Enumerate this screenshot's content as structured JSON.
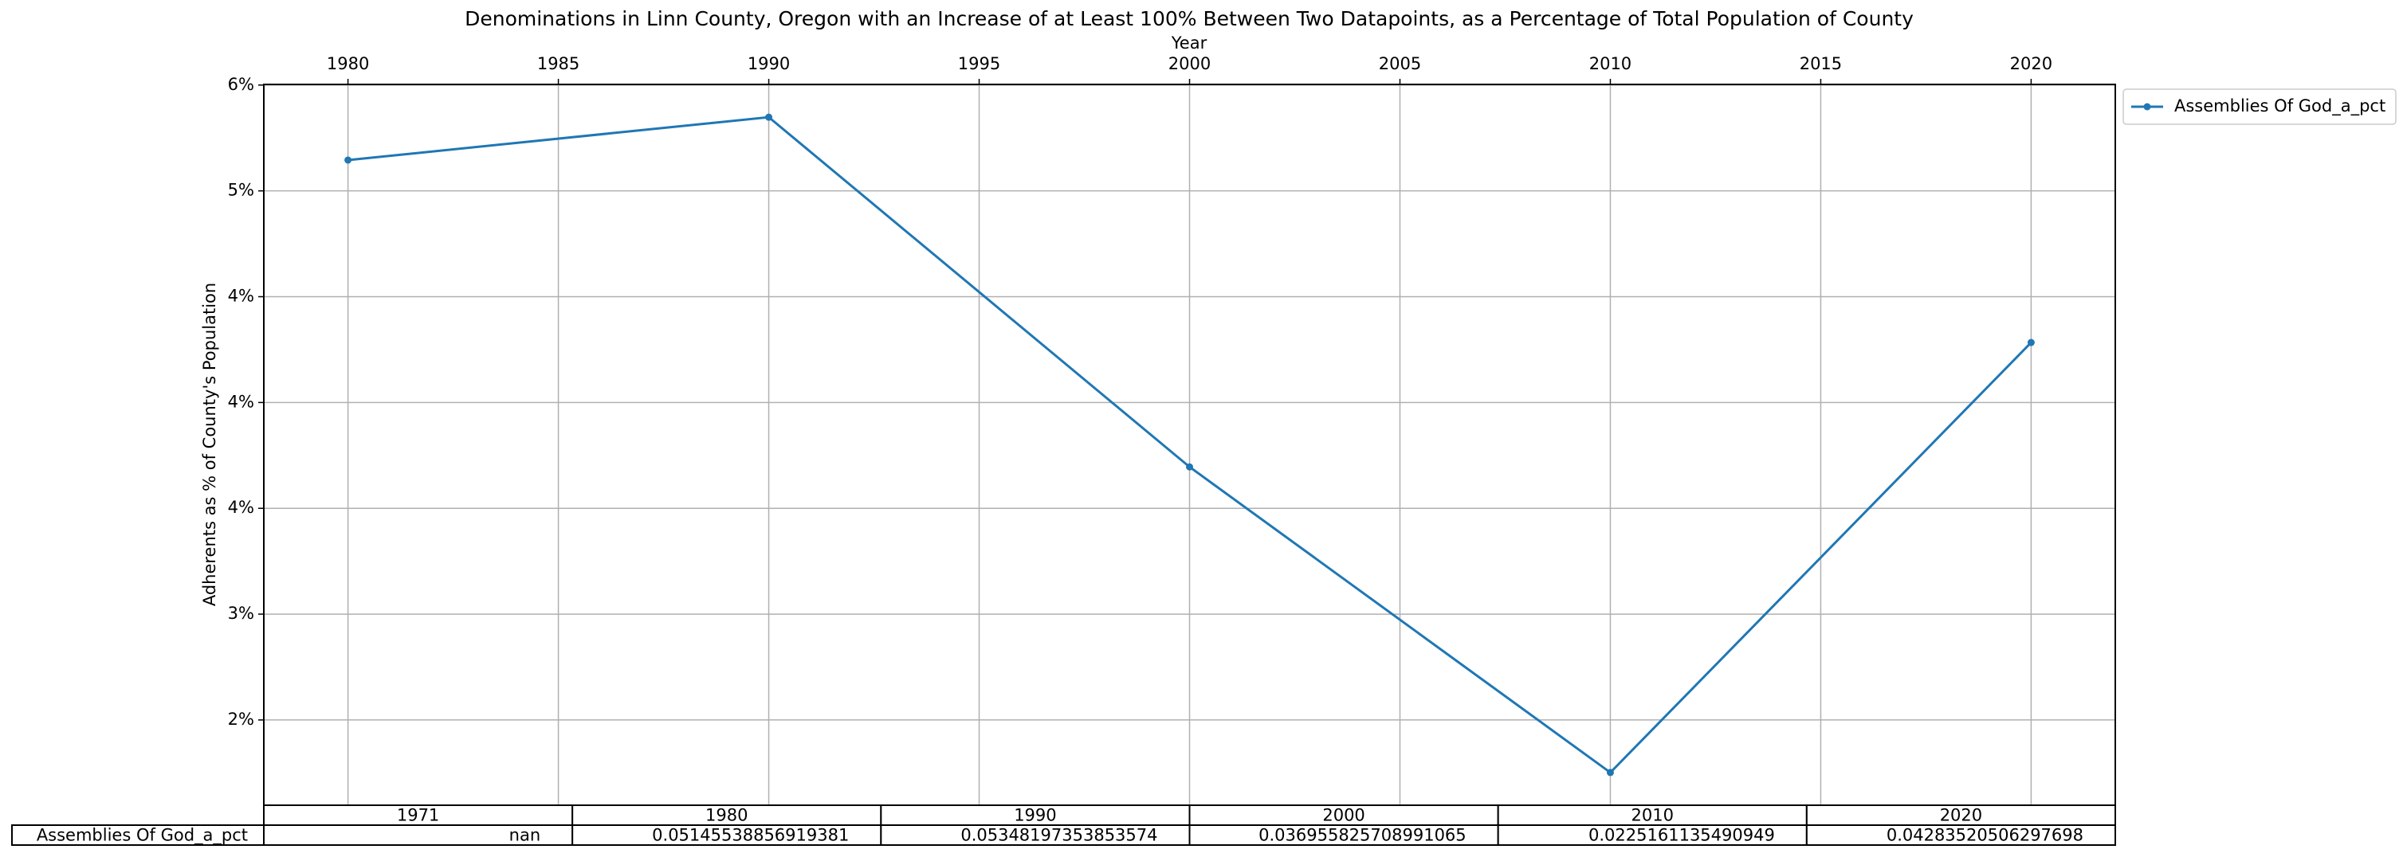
{
  "chart_data": {
    "type": "line",
    "title": "Denominations in Linn County, Oregon with an Increase of at Least 100% Between Two Datapoints, as a Percentage of Total Population of County",
    "xlabel": "Year",
    "ylabel": "Adherents as % of County's Population",
    "x": [
      1980,
      1990,
      2000,
      2010,
      2020
    ],
    "series": [
      {
        "name": "Assemblies Of God_a_pct",
        "color": "#1f77b4",
        "values": [
          0.05145538856919381,
          0.05348197353853574,
          0.036955825708991065,
          0.0225161135490949,
          0.04283520506297698
        ]
      }
    ],
    "xlim": [
      1978,
      2022
    ],
    "xticks": [
      1980,
      1985,
      1990,
      1995,
      2000,
      2005,
      2010,
      2015,
      2020
    ],
    "ylim": [
      0.02097,
      0.05503
    ],
    "yticks": [
      {
        "value": 0.025,
        "label": "2%"
      },
      {
        "value": 0.03,
        "label": "3%"
      },
      {
        "value": 0.035,
        "label": "4%"
      },
      {
        "value": 0.04,
        "label": "4%"
      },
      {
        "value": 0.045,
        "label": "4%"
      },
      {
        "value": 0.05,
        "label": "5%"
      },
      {
        "value": 0.055,
        "label": "6%"
      }
    ],
    "grid": true,
    "legend": "outside-upper-right",
    "table": {
      "columns": [
        "1971",
        "1980",
        "1990",
        "2000",
        "2010",
        "2020"
      ],
      "row_label": "Assemblies Of God_a_pct",
      "cells": [
        "nan",
        "0.05145538856919381",
        "0.05348197353853574",
        "0.036955825708991065",
        "0.0225161135490949",
        "0.04283520506297698"
      ]
    }
  }
}
